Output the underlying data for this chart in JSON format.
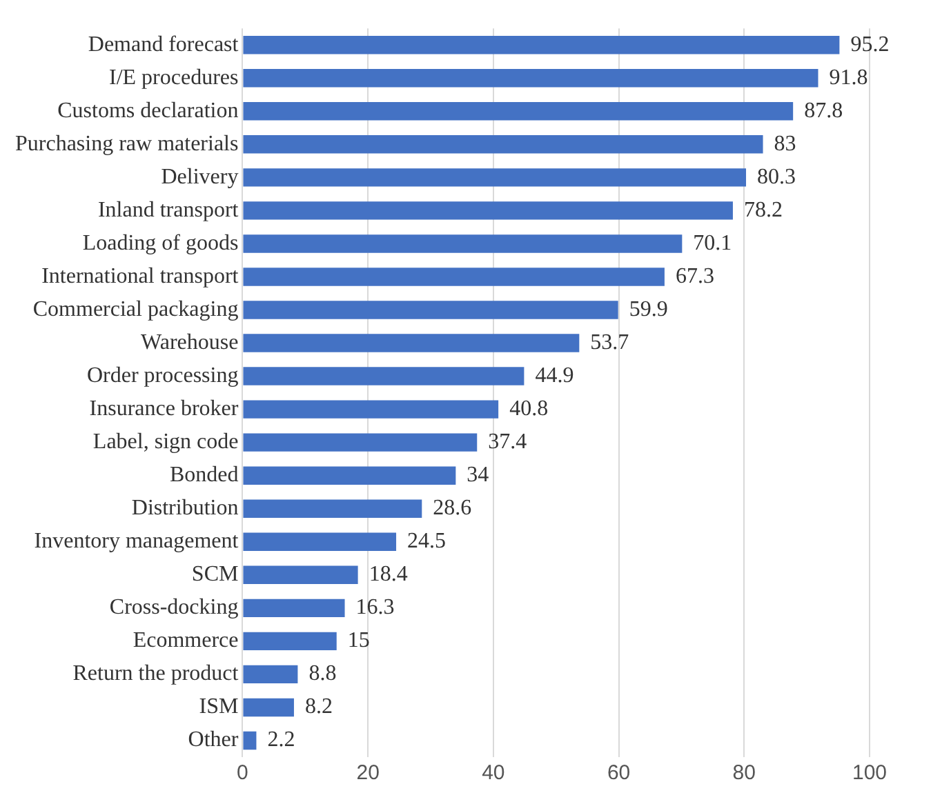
{
  "chart_data": {
    "type": "bar",
    "orientation": "horizontal",
    "categories": [
      "Demand forecast",
      "I/E procedures",
      "Customs declaration",
      "Purchasing raw materials",
      "Delivery",
      "Inland transport",
      "Loading of goods",
      "International transport",
      "Commercial packaging",
      "Warehouse",
      "Order processing",
      "Insurance broker",
      "Label, sign code",
      "Bonded",
      "Distribution",
      "Inventory management",
      "SCM",
      "Cross-docking",
      "Ecommerce",
      "Return the product",
      "ISM",
      "Other"
    ],
    "values": [
      95.2,
      91.8,
      87.8,
      83,
      80.3,
      78.2,
      70.1,
      67.3,
      59.9,
      53.7,
      44.9,
      40.8,
      37.4,
      34,
      28.6,
      24.5,
      18.4,
      16.3,
      15,
      8.8,
      8.2,
      2.2
    ],
    "color": "#4472c4",
    "xlim": [
      0,
      100
    ],
    "xticks": [
      0,
      20,
      40,
      60,
      80,
      100
    ],
    "grid": "x",
    "data_labels": true,
    "legend": false
  }
}
